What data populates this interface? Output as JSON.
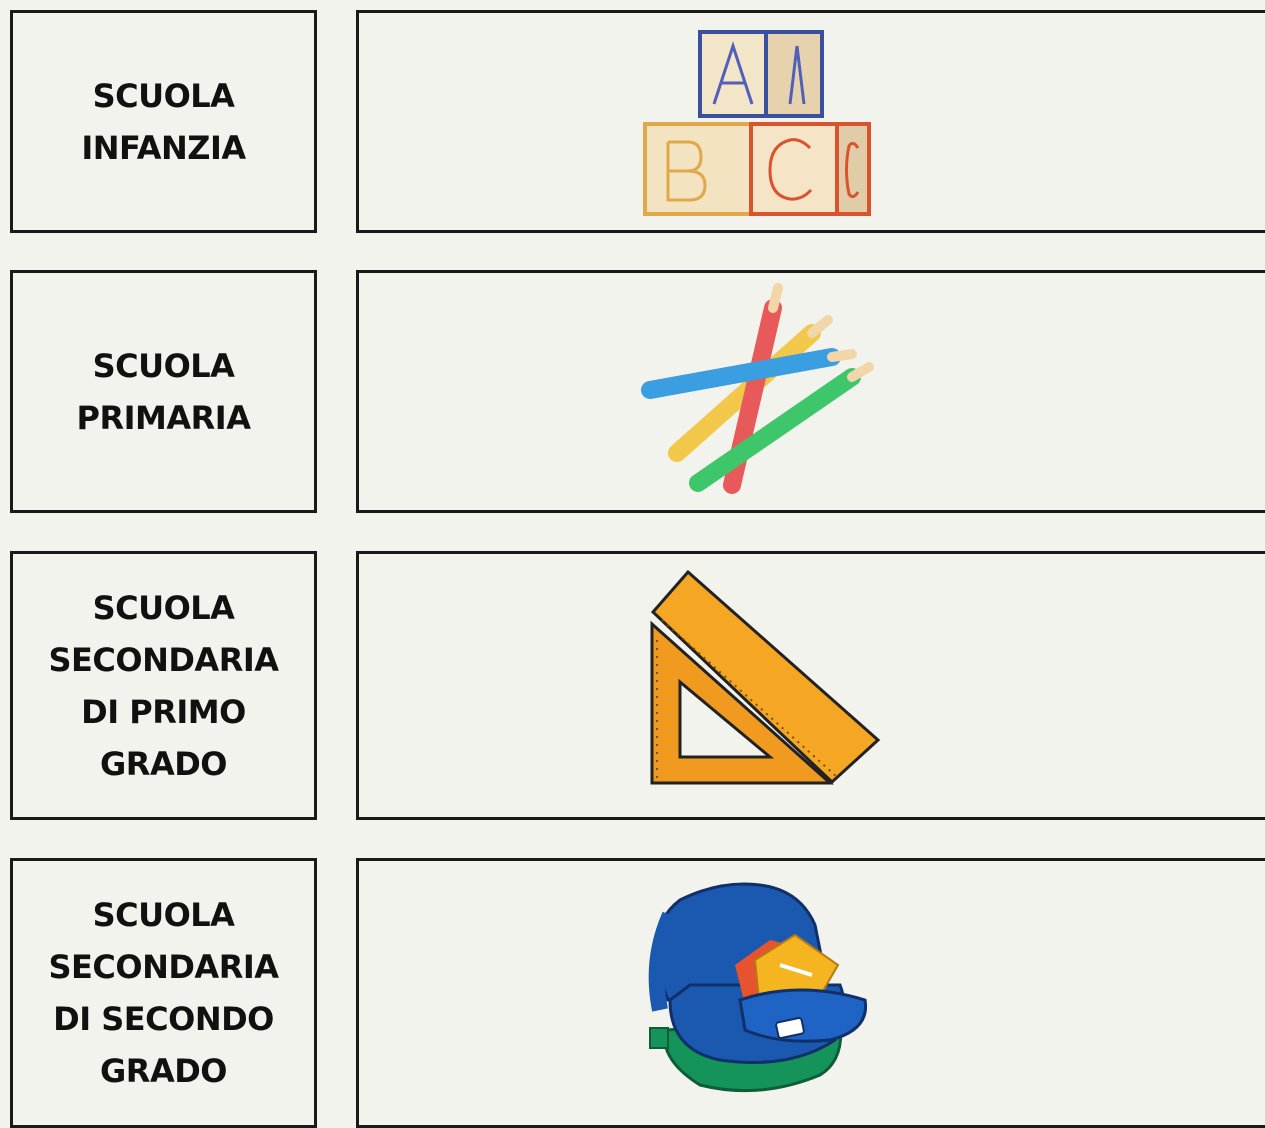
{
  "rows": [
    {
      "lines": [
        "SCUOLA",
        "INFANZIA"
      ]
    },
    {
      "lines": [
        "SCUOLA",
        "PRIMARIA"
      ]
    },
    {
      "lines": [
        "SCUOLA",
        "SECONDARIA",
        "DI PRIMO",
        "GRADO"
      ]
    },
    {
      "lines": [
        "SCUOLA",
        "SECONDARIA",
        "DI SECONDO",
        "GRADO"
      ]
    }
  ]
}
